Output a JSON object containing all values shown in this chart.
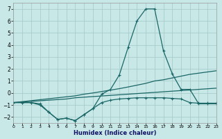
{
  "xlabel": "Humidex (Indice chaleur)",
  "bg_color": "#c8e8e8",
  "grid_color": "#a8cccc",
  "line_color": "#1a6666",
  "xlim": [
    0,
    23
  ],
  "ylim": [
    -2.5,
    7.5
  ],
  "yticks": [
    -2,
    -1,
    0,
    1,
    2,
    3,
    4,
    5,
    6,
    7
  ],
  "xticks": [
    0,
    1,
    2,
    3,
    4,
    5,
    6,
    7,
    8,
    9,
    10,
    11,
    12,
    13,
    14,
    15,
    16,
    17,
    18,
    19,
    20,
    21,
    22,
    23
  ],
  "peak_x": [
    0,
    1,
    2,
    3,
    4,
    5,
    6,
    7,
    8,
    9,
    10,
    11,
    12,
    13,
    14,
    15,
    16,
    17,
    18,
    19,
    20,
    21,
    22,
    23
  ],
  "peak_y": [
    -0.8,
    -0.8,
    -0.8,
    -0.9,
    -1.6,
    -2.2,
    -2.1,
    -2.3,
    -1.8,
    -1.3,
    -0.1,
    0.3,
    1.5,
    3.8,
    6.0,
    7.0,
    7.0,
    3.5,
    1.6,
    0.3,
    0.3,
    -0.9,
    -0.9,
    -0.9
  ],
  "diag1_x": [
    0,
    1,
    2,
    3,
    4,
    5,
    6,
    7,
    8,
    9,
    10,
    11,
    12,
    13,
    14,
    15,
    16,
    17,
    18,
    19,
    20,
    21,
    22,
    23
  ],
  "diag1_y": [
    -0.8,
    -0.75,
    -0.7,
    -0.65,
    -0.6,
    -0.55,
    -0.5,
    -0.4,
    -0.35,
    -0.3,
    -0.25,
    -0.2,
    -0.15,
    -0.1,
    -0.05,
    0.0,
    0.05,
    0.1,
    0.15,
    0.2,
    0.25,
    0.3,
    0.35,
    0.4
  ],
  "diag2_x": [
    0,
    1,
    2,
    3,
    4,
    5,
    6,
    7,
    8,
    9,
    10,
    11,
    12,
    13,
    14,
    15,
    16,
    17,
    18,
    19,
    20,
    21,
    22,
    23
  ],
  "diag2_y": [
    -0.8,
    -0.72,
    -0.64,
    -0.56,
    -0.48,
    -0.4,
    -0.32,
    -0.24,
    -0.1,
    0.0,
    0.12,
    0.24,
    0.36,
    0.5,
    0.65,
    0.8,
    1.0,
    1.1,
    1.25,
    1.4,
    1.55,
    1.65,
    1.75,
    1.85
  ],
  "env_x": [
    0,
    1,
    2,
    3,
    4,
    5,
    6,
    7,
    8,
    9,
    10,
    11,
    12,
    13,
    14,
    15,
    16,
    17,
    18,
    19,
    20,
    21,
    22,
    23
  ],
  "env_y": [
    -0.8,
    -0.8,
    -0.8,
    -1.0,
    -1.6,
    -2.2,
    -2.1,
    -2.3,
    -1.8,
    -1.3,
    -0.8,
    -0.6,
    -0.5,
    -0.45,
    -0.4,
    -0.4,
    -0.4,
    -0.4,
    -0.45,
    -0.5,
    -0.8,
    -0.85,
    -0.85,
    -0.85
  ]
}
